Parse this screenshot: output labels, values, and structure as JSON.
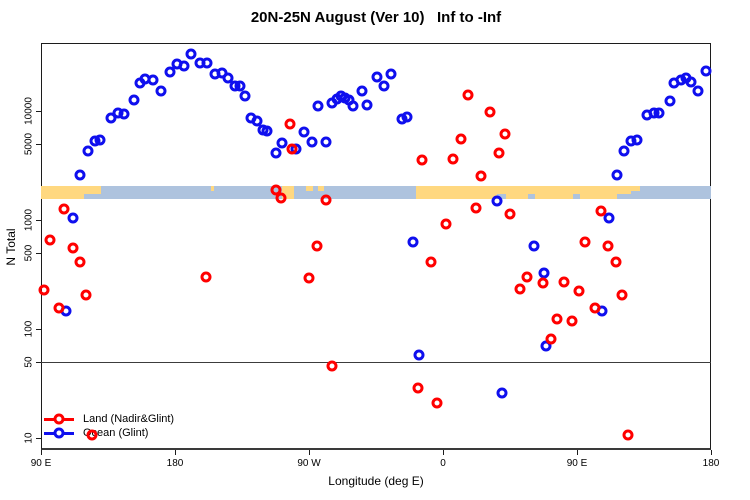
{
  "title": "20N-25N August (Ver 10)   Inf to -Inf",
  "colors": {
    "land_series": "#ff0000",
    "ocean_series": "#0f0fee",
    "band_ocean": "#aec3de",
    "band_land": "#ffd880",
    "axis": "#1c1c1c",
    "reference_line": "#3c3c3c"
  },
  "map_band": {
    "description": "20N-25N latitude strip map: land(orange)/ocean(blue) along longitude",
    "center_value": 1790,
    "ocean_color": "#aec3de",
    "land_color": "#ffd880",
    "land_segments": [
      {
        "from": 0,
        "to": 29,
        "h": "full"
      },
      {
        "from": 29,
        "to": 40,
        "h": "top"
      },
      {
        "from": 114,
        "to": 116,
        "h": "thin"
      },
      {
        "from": 162,
        "to": 170,
        "h": "full"
      },
      {
        "from": 178,
        "to": 183,
        "h": "thin"
      },
      {
        "from": 186,
        "to": 190,
        "h": "thin"
      },
      {
        "from": 252,
        "to": 306,
        "h": "full"
      },
      {
        "from": 306,
        "to": 312,
        "h": "top"
      },
      {
        "from": 312,
        "to": 327,
        "h": "full"
      },
      {
        "from": 327,
        "to": 332,
        "h": "top"
      },
      {
        "from": 332,
        "to": 357,
        "h": "full"
      },
      {
        "from": 357,
        "to": 362,
        "h": "top"
      },
      {
        "from": 362,
        "to": 387,
        "h": "full"
      },
      {
        "from": 387,
        "to": 396,
        "h": "top"
      },
      {
        "from": 396,
        "to": 402,
        "h": "thin"
      }
    ]
  },
  "chart_data": {
    "type": "scatter",
    "title": "20N-25N August (Ver 10)   Inf to -Inf",
    "xlabel": "Longitude (deg E)",
    "ylabel": "N Total",
    "y_scale": "log10",
    "y_range": [
      5,
      40000
    ],
    "x_axis_note": "x = degrees eastward along axis starting at 90E (axis spans 450 deg, wraps past dateline twice)",
    "x_range_deg": [
      0,
      450
    ],
    "reference_line_value": 50,
    "x_ticks": [
      {
        "deg": 0,
        "label": "90 E"
      },
      {
        "deg": 90,
        "label": "180"
      },
      {
        "deg": 180,
        "label": "90 W"
      },
      {
        "deg": 270,
        "label": "0"
      },
      {
        "deg": 360,
        "label": "90 E"
      },
      {
        "deg": 450,
        "label": "180"
      }
    ],
    "y_ticks": [
      {
        "value": 10000,
        "label": "10000"
      },
      {
        "value": 5000,
        "label": "5000"
      },
      {
        "value": 1000,
        "label": "1000"
      },
      {
        "value": 500,
        "label": "500"
      },
      {
        "value": 100,
        "label": "100"
      },
      {
        "value": 50,
        "label": "50"
      },
      {
        "value": 10,
        "label": "10"
      }
    ],
    "series": [
      {
        "name": "Land (Nadir&Glint)",
        "color": "#ff0000",
        "points": [
          [
            2.0,
            227
          ],
          [
            6.0,
            656
          ],
          [
            12.1,
            156
          ],
          [
            15.4,
            1260
          ],
          [
            21.5,
            552
          ],
          [
            26.2,
            410
          ],
          [
            30.2,
            205
          ],
          [
            34.3,
            10.7
          ],
          [
            110.8,
            300
          ],
          [
            157.8,
            1890
          ],
          [
            161.2,
            1590
          ],
          [
            167.2,
            7620
          ],
          [
            168.6,
            4490
          ],
          [
            180.0,
            293
          ],
          [
            185.4,
            578
          ],
          [
            191.4,
            1530
          ],
          [
            195.4,
            46
          ],
          [
            253.2,
            29
          ],
          [
            255.9,
            3570
          ],
          [
            261.9,
            410
          ],
          [
            266.0,
            21
          ],
          [
            272.0,
            925
          ],
          [
            276.7,
            3650
          ],
          [
            282.1,
            5560
          ],
          [
            286.8,
            14100
          ],
          [
            292.1,
            1290
          ],
          [
            295.5,
            2540
          ],
          [
            301.5,
            9700
          ],
          [
            307.6,
            4080
          ],
          [
            311.6,
            6170
          ],
          [
            315.0,
            1130
          ],
          [
            321.7,
            233
          ],
          [
            326.4,
            300
          ],
          [
            337.1,
            264
          ],
          [
            342.5,
            81
          ],
          [
            346.5,
            123
          ],
          [
            351.2,
            270
          ],
          [
            356.6,
            118
          ],
          [
            361.3,
            224
          ],
          [
            365.6,
            630
          ],
          [
            372.1,
            156
          ],
          [
            376.1,
            1210
          ],
          [
            381.0,
            580
          ],
          [
            386.2,
            410
          ],
          [
            390.2,
            205
          ],
          [
            394.2,
            10.7
          ]
        ]
      },
      {
        "name": "Ocean (Glint)",
        "color": "#0f0fee",
        "points": [
          [
            16.8,
            146
          ],
          [
            21.5,
            1040
          ],
          [
            26.2,
            2590
          ],
          [
            31.6,
            4290
          ],
          [
            36.3,
            5310
          ],
          [
            39.6,
            5430
          ],
          [
            47.0,
            8630
          ],
          [
            51.7,
            9600
          ],
          [
            55.7,
            9400
          ],
          [
            62.5,
            12500
          ],
          [
            66.5,
            17900
          ],
          [
            69.9,
            19500
          ],
          [
            75.2,
            19100
          ],
          [
            80.6,
            15200
          ],
          [
            86.6,
            22600
          ],
          [
            91.3,
            26900
          ],
          [
            96.0,
            25800
          ],
          [
            100.7,
            33400
          ],
          [
            106.8,
            27500
          ],
          [
            111.5,
            27500
          ],
          [
            116.9,
            21800
          ],
          [
            121.6,
            22300
          ],
          [
            125.6,
            20000
          ],
          [
            130.3,
            17100
          ],
          [
            133.6,
            16800
          ],
          [
            137.0,
            13800
          ],
          [
            141.0,
            8630
          ],
          [
            145.1,
            8100
          ],
          [
            149.1,
            6680
          ],
          [
            151.8,
            6560
          ],
          [
            157.8,
            4130
          ],
          [
            161.9,
            5100
          ],
          [
            171.3,
            4490
          ],
          [
            176.6,
            6430
          ],
          [
            182.0,
            5210
          ],
          [
            186.0,
            11200
          ],
          [
            191.4,
            5210
          ],
          [
            195.4,
            11900
          ],
          [
            198.8,
            12900
          ],
          [
            201.5,
            13800
          ],
          [
            204.2,
            13200
          ],
          [
            206.9,
            12600
          ],
          [
            209.5,
            11200
          ],
          [
            215.6,
            15100
          ],
          [
            219.0,
            11400
          ],
          [
            225.7,
            20500
          ],
          [
            230.4,
            17100
          ],
          [
            235.1,
            21800
          ],
          [
            242.4,
            8440
          ],
          [
            245.8,
            8800
          ],
          [
            249.8,
            629
          ],
          [
            253.9,
            58
          ],
          [
            306.2,
            1500
          ],
          [
            309.6,
            26
          ],
          [
            331.0,
            578
          ],
          [
            337.8,
            325
          ],
          [
            339.2,
            70
          ],
          [
            376.8,
            146
          ],
          [
            381.5,
            1040
          ],
          [
            386.8,
            2590
          ],
          [
            391.5,
            4290
          ],
          [
            396.2,
            5310
          ],
          [
            400.3,
            5430
          ],
          [
            407.0,
            9100
          ],
          [
            411.7,
            9500
          ],
          [
            415.0,
            9500
          ],
          [
            422.4,
            12400
          ],
          [
            425.1,
            18200
          ],
          [
            429.8,
            19400
          ],
          [
            433.2,
            20200
          ],
          [
            436.5,
            18600
          ],
          [
            441.2,
            15400
          ],
          [
            446.6,
            23500
          ]
        ]
      }
    ]
  },
  "legend": {
    "items": [
      {
        "label": "Land (Nadir&Glint)",
        "color": "#ff0000"
      },
      {
        "label": "Ocean (Glint)",
        "color": "#0f0fee"
      }
    ]
  }
}
